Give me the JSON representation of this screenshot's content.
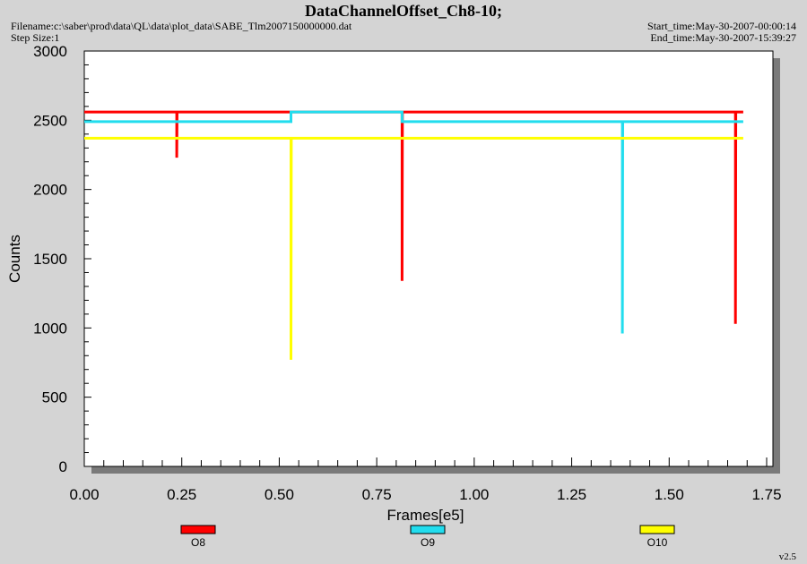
{
  "header": {
    "title": "DataChannelOffset_Ch8-10;",
    "filename": "Filename:c:\\saber\\prod\\data\\QL\\data\\plot_data\\SABE_Tlm2007150000000.dat",
    "step_size": "Step Size:1",
    "start_time": "Start_time:May-30-2007-00:00:14",
    "end_time": "End_time:May-30-2007-15:39:27"
  },
  "footer": {
    "version": "v2.5"
  },
  "chart_data": {
    "type": "line",
    "title": "DataChannelOffset_Ch8-10;",
    "xlabel": "Frames[e5]",
    "ylabel": "Counts",
    "xlim": [
      0,
      1.75
    ],
    "ylim": [
      0,
      3000
    ],
    "x_ticks": [
      "0.00",
      "0.25",
      "0.50",
      "0.75",
      "1.00",
      "1.25",
      "1.50",
      "1.75"
    ],
    "y_ticks": [
      "0",
      "500",
      "1000",
      "1500",
      "2000",
      "2500",
      "3000"
    ],
    "grid": false,
    "legend_position": "bottom",
    "series": [
      {
        "name": "O8",
        "color": "#ff0000",
        "points": [
          [
            0.0,
            2560
          ],
          [
            0.237,
            2560
          ],
          [
            0.237,
            2230
          ],
          [
            0.238,
            2560
          ],
          [
            0.815,
            2560
          ],
          [
            0.815,
            1340
          ],
          [
            0.816,
            2560
          ],
          [
            1.67,
            2560
          ],
          [
            1.67,
            1030
          ],
          [
            1.671,
            2560
          ],
          [
            1.69,
            2560
          ]
        ]
      },
      {
        "name": "O9",
        "color": "#22ddee",
        "points": [
          [
            0.0,
            2490
          ],
          [
            0.53,
            2490
          ],
          [
            0.53,
            2560
          ],
          [
            0.815,
            2560
          ],
          [
            0.815,
            2490
          ],
          [
            1.38,
            2490
          ],
          [
            1.38,
            960
          ],
          [
            1.381,
            2490
          ],
          [
            1.69,
            2490
          ]
        ]
      },
      {
        "name": "O10",
        "color": "#ffff00",
        "points": [
          [
            0.0,
            2370
          ],
          [
            0.53,
            2370
          ],
          [
            0.53,
            770
          ],
          [
            0.531,
            2370
          ],
          [
            1.69,
            2370
          ]
        ]
      }
    ]
  }
}
